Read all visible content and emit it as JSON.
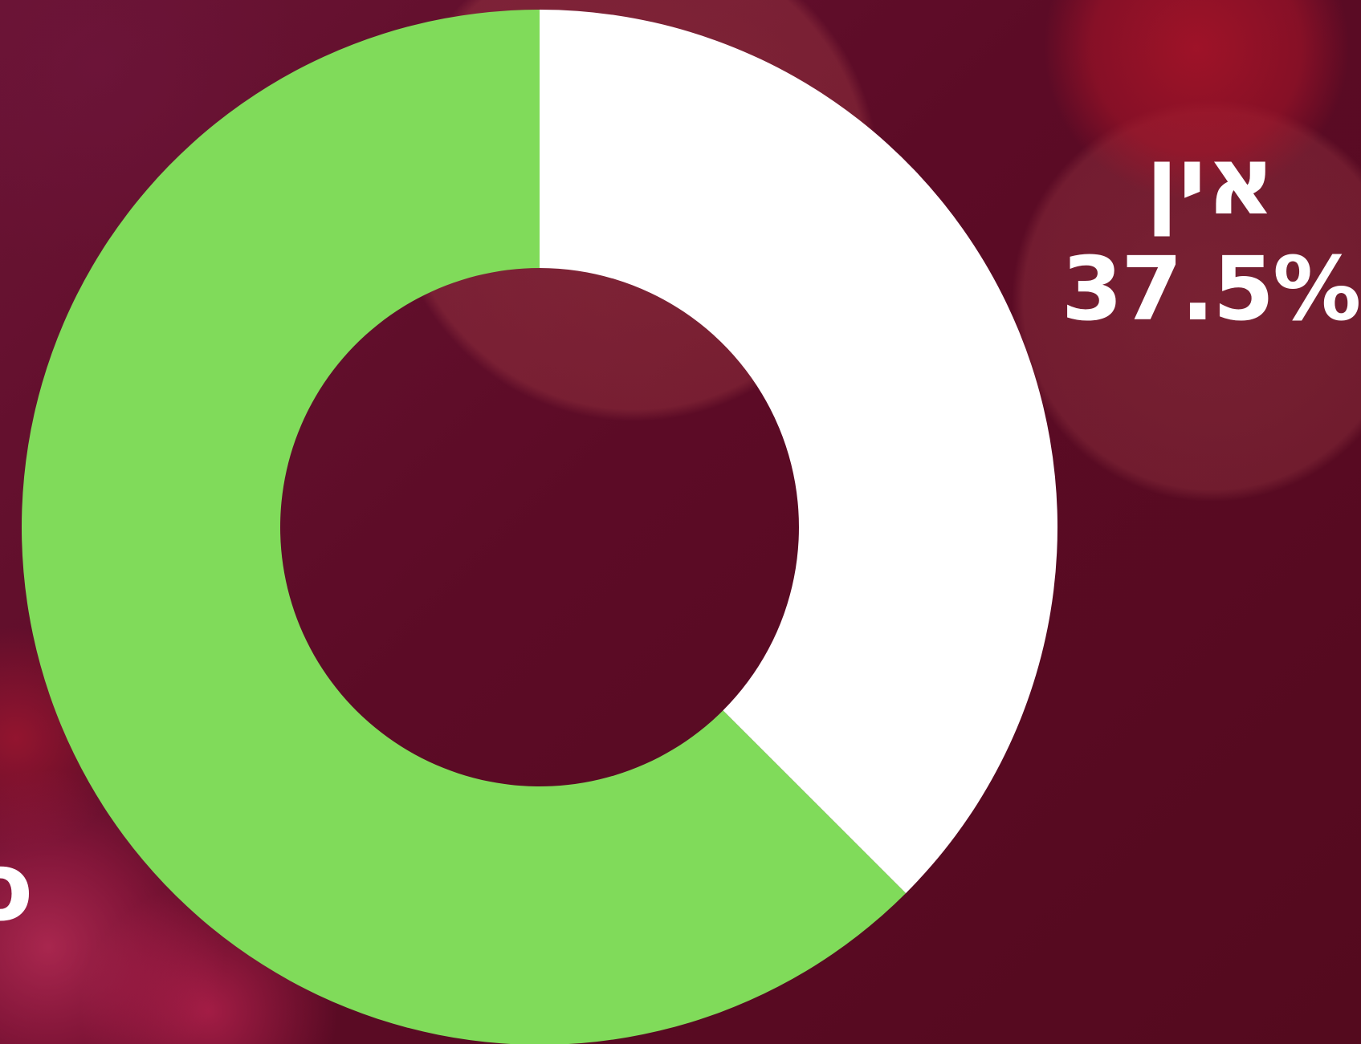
{
  "chart_data": {
    "type": "pie",
    "variant": "donut",
    "title": "",
    "categories": [
      "אין",
      ""
    ],
    "values": [
      37.5,
      62.5
    ],
    "colors": [
      "#ffffff",
      "#80db5a"
    ],
    "labels": [
      {
        "name": "אין",
        "value_text": "37.5%"
      },
      {
        "name": "",
        "value_text": ""
      }
    ],
    "edge_fragment": "o",
    "legend": "none"
  }
}
